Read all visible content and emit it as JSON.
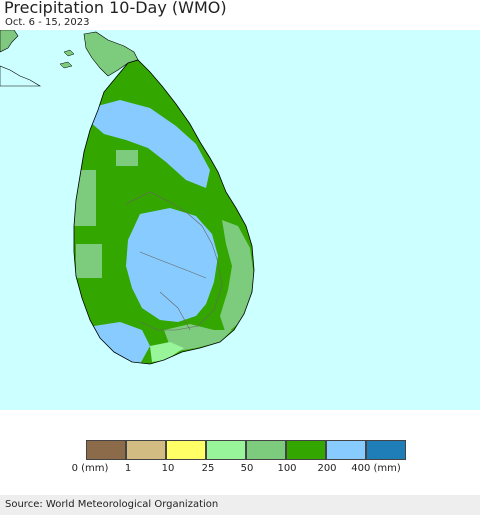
{
  "header": {
    "title": "Precipitation 10-Day (WMO)",
    "subtitle": "Oct. 6 - 15, 2023"
  },
  "map": {
    "ocean_color": "#ccffff",
    "india_color": "#80c880"
  },
  "legend": {
    "swatches": [
      {
        "color": "#8b6b4a"
      },
      {
        "color": "#d2bc82"
      },
      {
        "color": "#ffff66"
      },
      {
        "color": "#99f599"
      },
      {
        "color": "#7dcb7d"
      },
      {
        "color": "#33a600"
      },
      {
        "color": "#88ccff"
      },
      {
        "color": "#1f7db8"
      }
    ],
    "labels": [
      "0 (mm)",
      "1",
      "10",
      "25",
      "50",
      "100",
      "200",
      "400 (mm)"
    ]
  },
  "footer": {
    "source": "Source: World Meteorological Organization"
  }
}
